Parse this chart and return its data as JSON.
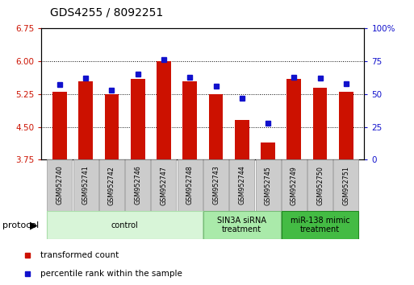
{
  "title": "GDS4255 / 8092251",
  "samples": [
    "GSM952740",
    "GSM952741",
    "GSM952742",
    "GSM952746",
    "GSM952747",
    "GSM952748",
    "GSM952743",
    "GSM952744",
    "GSM952745",
    "GSM952749",
    "GSM952750",
    "GSM952751"
  ],
  "red_values": [
    5.3,
    5.55,
    5.25,
    5.6,
    6.0,
    5.55,
    5.25,
    4.65,
    4.15,
    5.6,
    5.4,
    5.3
  ],
  "blue_values": [
    57,
    62,
    53,
    65,
    76,
    63,
    56,
    47,
    28,
    63,
    62,
    58
  ],
  "ylim_left": [
    3.75,
    6.75
  ],
  "ylim_right": [
    0,
    100
  ],
  "yticks_left": [
    3.75,
    4.5,
    5.25,
    6.0,
    6.75
  ],
  "yticks_right": [
    0,
    25,
    50,
    75,
    100
  ],
  "base_value": 3.75,
  "red_color": "#cc1100",
  "blue_color": "#1111cc",
  "bar_width": 0.55,
  "groups": [
    {
      "label": "control",
      "start": 0,
      "end": 5,
      "color": "#d8f5d8",
      "edge_color": "#aaddaa"
    },
    {
      "label": "SIN3A siRNA\ntreatment",
      "start": 6,
      "end": 8,
      "color": "#aaeaaa",
      "edge_color": "#77bb77"
    },
    {
      "label": "miR-138 mimic\ntreatment",
      "start": 9,
      "end": 11,
      "color": "#44bb44",
      "edge_color": "#228822"
    }
  ],
  "legend_red_label": "transformed count",
  "legend_blue_label": "percentile rank within the sample",
  "protocol_label": "protocol",
  "tick_color_left": "#cc1100",
  "tick_color_right": "#1111cc",
  "title_fontsize": 10,
  "tick_label_fontsize": 7.5
}
